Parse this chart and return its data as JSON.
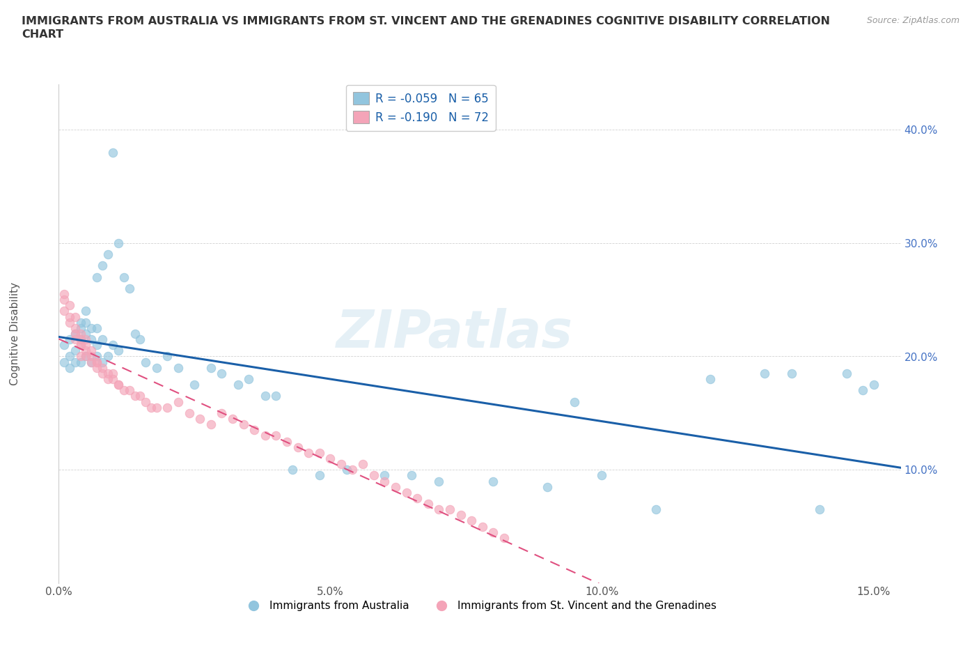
{
  "title": "IMMIGRANTS FROM AUSTRALIA VS IMMIGRANTS FROM ST. VINCENT AND THE GRENADINES COGNITIVE DISABILITY CORRELATION\nCHART",
  "source_text": "Source: ZipAtlas.com",
  "xlabel": "",
  "ylabel": "Cognitive Disability",
  "xlim": [
    0.0,
    0.155
  ],
  "ylim": [
    0.0,
    0.44
  ],
  "xticks": [
    0.0,
    0.05,
    0.1,
    0.15
  ],
  "xticklabels": [
    "0.0%",
    "5.0%",
    "10.0%",
    "15.0%"
  ],
  "yticks": [
    0.1,
    0.2,
    0.3,
    0.4
  ],
  "yticklabels": [
    "10.0%",
    "20.0%",
    "30.0%",
    "40.0%"
  ],
  "legend_r1": "R = -0.059   N = 65",
  "legend_r2": "R = -0.190   N = 72",
  "legend_label1": "Immigrants from Australia",
  "legend_label2": "Immigrants from St. Vincent and the Grenadines",
  "color_australia": "#92c5de",
  "color_svg": "#f4a4b8",
  "color_blue_line": "#1a5fa8",
  "color_pink_line": "#e05080",
  "watermark": "ZIPatlas",
  "australia_x": [
    0.001,
    0.001,
    0.002,
    0.002,
    0.002,
    0.003,
    0.003,
    0.003,
    0.004,
    0.004,
    0.004,
    0.004,
    0.005,
    0.005,
    0.005,
    0.005,
    0.006,
    0.006,
    0.006,
    0.007,
    0.007,
    0.007,
    0.007,
    0.008,
    0.008,
    0.008,
    0.009,
    0.009,
    0.01,
    0.01,
    0.011,
    0.011,
    0.012,
    0.013,
    0.014,
    0.015,
    0.016,
    0.018,
    0.02,
    0.022,
    0.025,
    0.028,
    0.03,
    0.033,
    0.035,
    0.038,
    0.04,
    0.043,
    0.048,
    0.053,
    0.06,
    0.065,
    0.07,
    0.08,
    0.09,
    0.095,
    0.1,
    0.11,
    0.12,
    0.13,
    0.135,
    0.14,
    0.145,
    0.148,
    0.15
  ],
  "australia_y": [
    0.195,
    0.21,
    0.2,
    0.215,
    0.19,
    0.205,
    0.195,
    0.22,
    0.195,
    0.215,
    0.225,
    0.23,
    0.2,
    0.22,
    0.23,
    0.24,
    0.195,
    0.215,
    0.225,
    0.2,
    0.21,
    0.225,
    0.27,
    0.195,
    0.215,
    0.28,
    0.2,
    0.29,
    0.21,
    0.38,
    0.205,
    0.3,
    0.27,
    0.26,
    0.22,
    0.215,
    0.195,
    0.19,
    0.2,
    0.19,
    0.175,
    0.19,
    0.185,
    0.175,
    0.18,
    0.165,
    0.165,
    0.1,
    0.095,
    0.1,
    0.095,
    0.095,
    0.09,
    0.09,
    0.085,
    0.16,
    0.095,
    0.065,
    0.18,
    0.185,
    0.185,
    0.065,
    0.185,
    0.17,
    0.175
  ],
  "svg_x": [
    0.001,
    0.001,
    0.001,
    0.002,
    0.002,
    0.002,
    0.003,
    0.003,
    0.003,
    0.003,
    0.004,
    0.004,
    0.004,
    0.004,
    0.004,
    0.005,
    0.005,
    0.005,
    0.005,
    0.006,
    0.006,
    0.006,
    0.007,
    0.007,
    0.007,
    0.008,
    0.008,
    0.009,
    0.009,
    0.01,
    0.01,
    0.011,
    0.011,
    0.012,
    0.013,
    0.014,
    0.015,
    0.016,
    0.017,
    0.018,
    0.02,
    0.022,
    0.024,
    0.026,
    0.028,
    0.03,
    0.032,
    0.034,
    0.036,
    0.038,
    0.04,
    0.042,
    0.044,
    0.046,
    0.048,
    0.05,
    0.052,
    0.054,
    0.056,
    0.058,
    0.06,
    0.062,
    0.064,
    0.066,
    0.068,
    0.07,
    0.072,
    0.074,
    0.076,
    0.078,
    0.08,
    0.082
  ],
  "svg_y": [
    0.25,
    0.24,
    0.255,
    0.23,
    0.245,
    0.235,
    0.22,
    0.235,
    0.225,
    0.215,
    0.215,
    0.21,
    0.22,
    0.2,
    0.21,
    0.205,
    0.215,
    0.2,
    0.21,
    0.2,
    0.205,
    0.195,
    0.195,
    0.195,
    0.19,
    0.185,
    0.19,
    0.185,
    0.18,
    0.185,
    0.18,
    0.175,
    0.175,
    0.17,
    0.17,
    0.165,
    0.165,
    0.16,
    0.155,
    0.155,
    0.155,
    0.16,
    0.15,
    0.145,
    0.14,
    0.15,
    0.145,
    0.14,
    0.135,
    0.13,
    0.13,
    0.125,
    0.12,
    0.115,
    0.115,
    0.11,
    0.105,
    0.1,
    0.105,
    0.095,
    0.09,
    0.085,
    0.08,
    0.075,
    0.07,
    0.065,
    0.065,
    0.06,
    0.055,
    0.05,
    0.045,
    0.04
  ]
}
